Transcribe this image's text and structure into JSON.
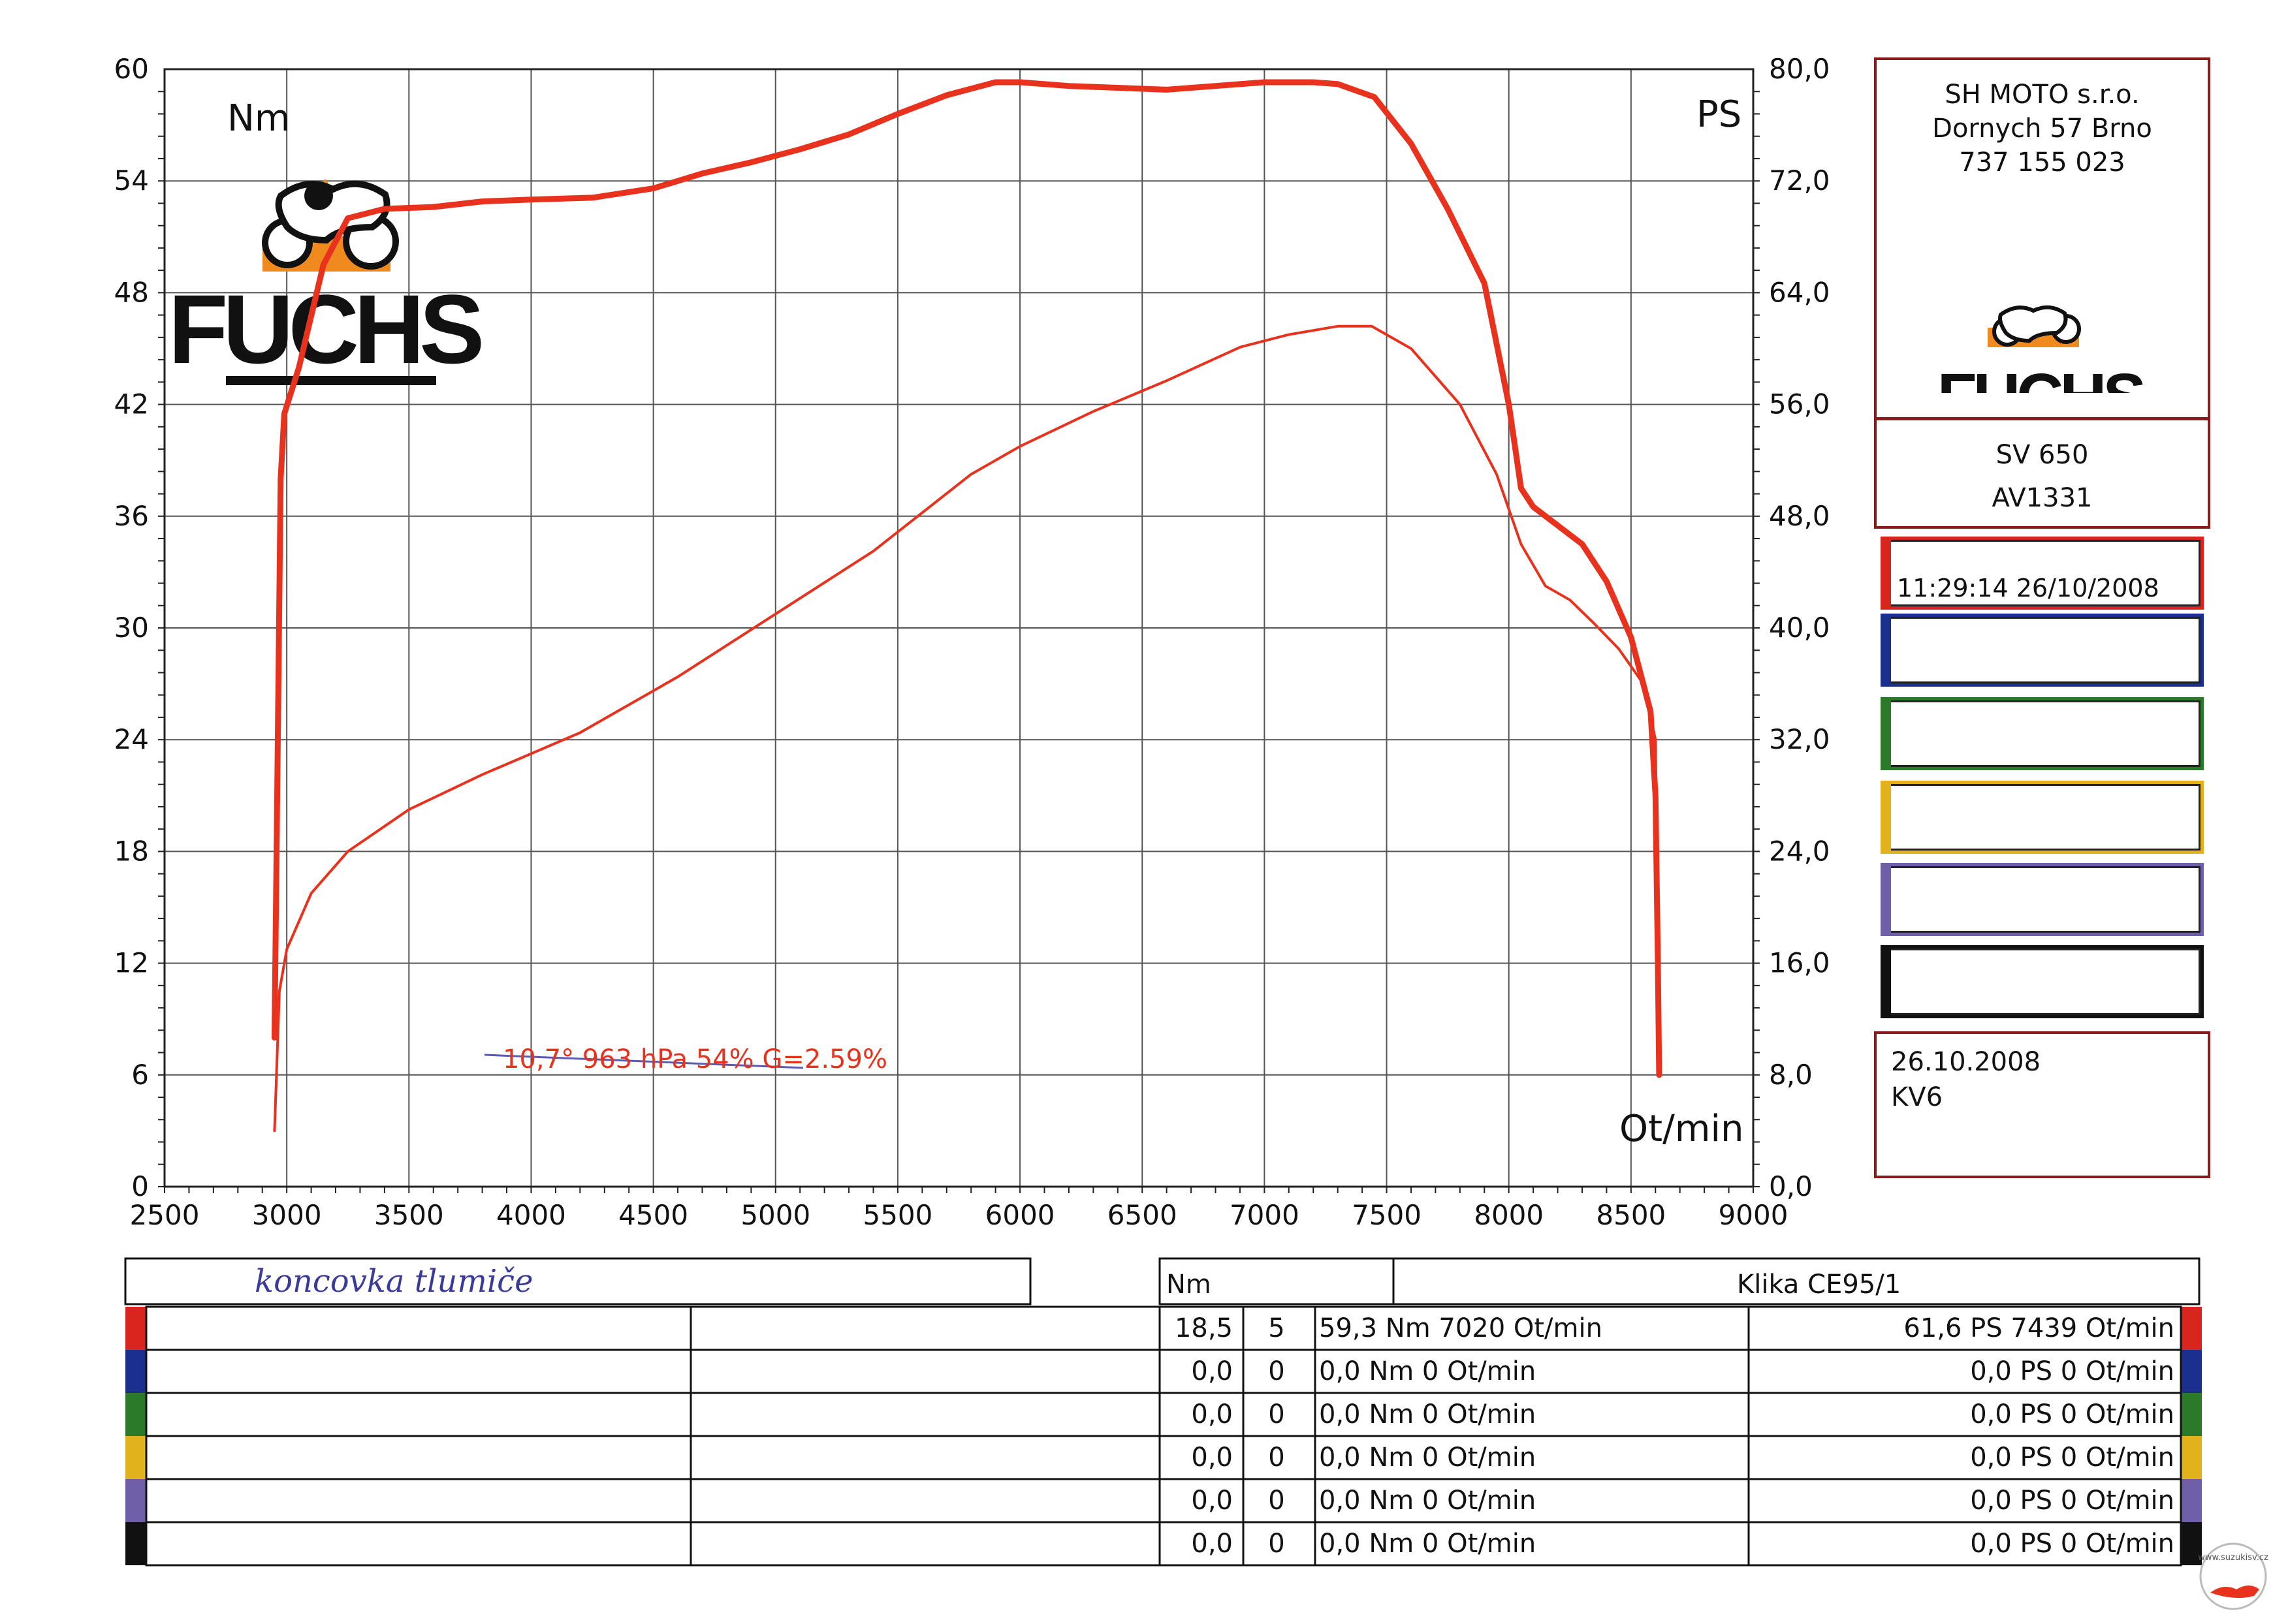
{
  "chart_data": {
    "type": "line",
    "xlim": [
      2500,
      9000
    ],
    "ylim_left": [
      0,
      60
    ],
    "ylim_right": [
      0,
      80
    ],
    "x_ticks": [
      "2500",
      "3000",
      "3500",
      "4000",
      "4500",
      "5000",
      "5500",
      "6000",
      "6500",
      "7000",
      "7500",
      "8000",
      "8500",
      "9000"
    ],
    "y_left_ticks": [
      "0",
      "6",
      "12",
      "18",
      "24",
      "30",
      "36",
      "42",
      "48",
      "54",
      "60"
    ],
    "y_right_ticks": [
      "0,0",
      "8,0",
      "16,0",
      "24,0",
      "32,0",
      "40,0",
      "48,0",
      "56,0",
      "64,0",
      "72,0",
      "80,0"
    ],
    "y_left_unit": "Nm",
    "y_right_unit": "PS",
    "x_unit": "Ot/min",
    "grid": true,
    "color": "#e8321e",
    "series": [
      {
        "axis": "left",
        "x": [
          2950,
          2960,
          2975,
          2990,
          3050,
          3150,
          3250,
          3400,
          3600,
          3800,
          4000,
          4250,
          4500,
          4700,
          4900,
          5100,
          5300,
          5500,
          5700,
          5900,
          6000,
          6200,
          6400,
          6600,
          6800,
          7000,
          7200,
          7300,
          7450,
          7600,
          7750,
          7900,
          8000,
          8050,
          8100,
          8200,
          8300,
          8400,
          8500,
          8550,
          8580,
          8600,
          8610,
          8615
        ],
        "y": [
          8.0,
          20.0,
          38.0,
          41.5,
          44.0,
          49.5,
          52.0,
          52.5,
          52.6,
          52.9,
          53.0,
          53.1,
          53.6,
          54.4,
          55.0,
          55.7,
          56.5,
          57.6,
          58.6,
          59.3,
          59.3,
          59.1,
          59.0,
          58.9,
          59.1,
          59.3,
          59.3,
          59.2,
          58.5,
          56.0,
          52.5,
          48.5,
          42.0,
          37.5,
          36.5,
          35.5,
          34.5,
          32.5,
          29.5,
          27.0,
          25.5,
          21.0,
          12.0,
          6.0
        ]
      },
      {
        "axis": "right",
        "x": [
          2950,
          2970,
          3000,
          3100,
          3250,
          3500,
          3800,
          4200,
          4600,
          5000,
          5400,
          5800,
          6000,
          6300,
          6600,
          6900,
          7100,
          7300,
          7439,
          7600,
          7800,
          7950,
          8050,
          8150,
          8250,
          8350,
          8450,
          8550,
          8600,
          8610,
          8615
        ],
        "y": [
          4.0,
          14.0,
          17.0,
          21.0,
          24.0,
          27.0,
          29.5,
          32.5,
          36.5,
          41.0,
          45.5,
          51.0,
          53.0,
          55.5,
          57.7,
          60.1,
          61.0,
          61.6,
          61.6,
          60.0,
          56.0,
          51.0,
          46.0,
          43.0,
          42.0,
          40.3,
          38.5,
          36.0,
          32.0,
          18.0,
          8.0
        ]
      }
    ],
    "annotation": "10,7°  963 hPa  54%    G=2.59%"
  },
  "company": {
    "name": "SH MOTO s.r.o.",
    "address": "Dornych 57 Brno",
    "phone": "737 155 023"
  },
  "logo_text": "FUCHS",
  "vehicle": {
    "model": "SV 650",
    "id": "AV1331"
  },
  "runs": [
    {
      "color": "#d8261e",
      "timestamp": "11:29:14  26/10/2008",
      "nm": "18,5",
      "col2": "5",
      "max_nm": "59,3 Nm 7020 Ot/min",
      "max_ps": "61,6 PS 7439 Ot/min"
    },
    {
      "color": "#1b2f8f",
      "timestamp": "",
      "nm": "0,0",
      "col2": "0",
      "max_nm": "0,0 Nm 0 Ot/min",
      "max_ps": "0,0 PS 0 Ot/min"
    },
    {
      "color": "#2a7a2a",
      "timestamp": "",
      "nm": "0,0",
      "col2": "0",
      "max_nm": "0,0 Nm 0 Ot/min",
      "max_ps": "0,0 PS 0 Ot/min"
    },
    {
      "color": "#e2b21c",
      "timestamp": "",
      "nm": "0,0",
      "col2": "0",
      "max_nm": "0,0 Nm 0 Ot/min",
      "max_ps": "0,0 PS 0 Ot/min"
    },
    {
      "color": "#6f5fa8",
      "timestamp": "",
      "nm": "0,0",
      "col2": "0",
      "max_nm": "0,0 Nm 0 Ot/min",
      "max_ps": "0,0 PS 0 Ot/min"
    },
    {
      "color": "#111111",
      "timestamp": "",
      "nm": "0,0",
      "col2": "0",
      "max_nm": "0,0 Nm 0 Ot/min",
      "max_ps": "0,0 PS 0 Ot/min"
    }
  ],
  "date_box": {
    "date": "26.10.2008",
    "code": "KV6"
  },
  "table": {
    "handwritten_note": "koncovka tlumiče",
    "unit_header": "Nm",
    "brake_header": "Klika CE95/1"
  },
  "watermark": "www.suzukisv.cz"
}
